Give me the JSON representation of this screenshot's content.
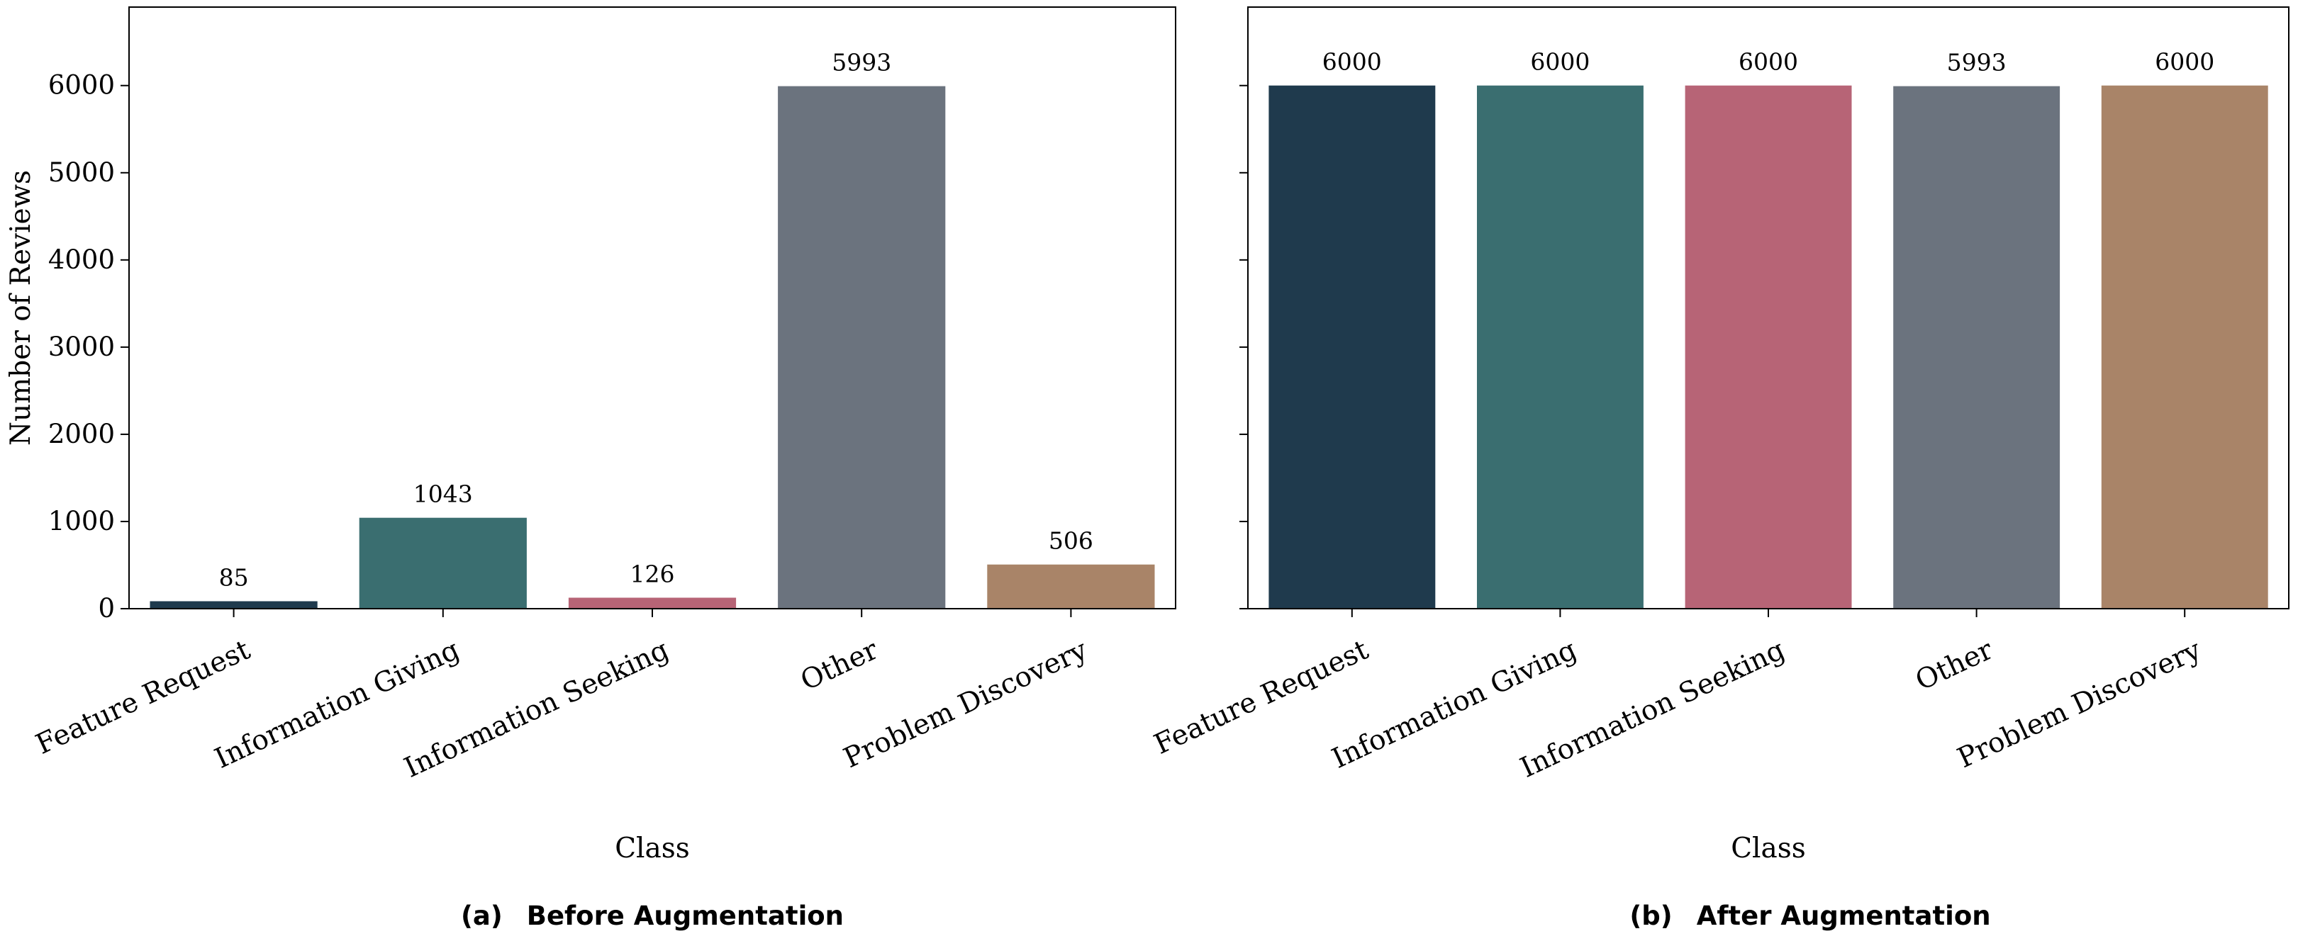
{
  "chart_data": [
    {
      "type": "bar",
      "panel_label": "(a)",
      "caption": "Before Augmentation",
      "categories": [
        "Feature Request",
        "Information Giving",
        "Information Seeking",
        "Other",
        "Problem Discovery"
      ],
      "values": [
        85,
        1043,
        126,
        5993,
        506
      ],
      "value_labels": [
        "85",
        "1043",
        "126",
        "5993",
        "506"
      ],
      "colors": [
        "#1f3a4d",
        "#3a6e70",
        "#b76476",
        "#6b737e",
        "#a98468"
      ],
      "xlabel": "Class",
      "ylabel": "Number of Reviews",
      "ylim": [
        0,
        6900
      ],
      "yticks": [
        0,
        1000,
        2000,
        3000,
        4000,
        5000,
        6000
      ],
      "grid": false,
      "show_ytick_labels": true
    },
    {
      "type": "bar",
      "panel_label": "(b)",
      "caption": "After Augmentation",
      "categories": [
        "Feature Request",
        "Information Giving",
        "Information Seeking",
        "Other",
        "Problem Discovery"
      ],
      "values": [
        6000,
        6000,
        6000,
        5993,
        6000
      ],
      "value_labels": [
        "6000",
        "6000",
        "6000",
        "5993",
        "6000"
      ],
      "colors": [
        "#1f3a4d",
        "#3a6e70",
        "#b76476",
        "#6b737e",
        "#a98468"
      ],
      "xlabel": "Class",
      "ylabel": "",
      "ylim": [
        0,
        6900
      ],
      "yticks": [
        0,
        1000,
        2000,
        3000,
        4000,
        5000,
        6000
      ],
      "grid": false,
      "show_ytick_labels": false
    }
  ]
}
